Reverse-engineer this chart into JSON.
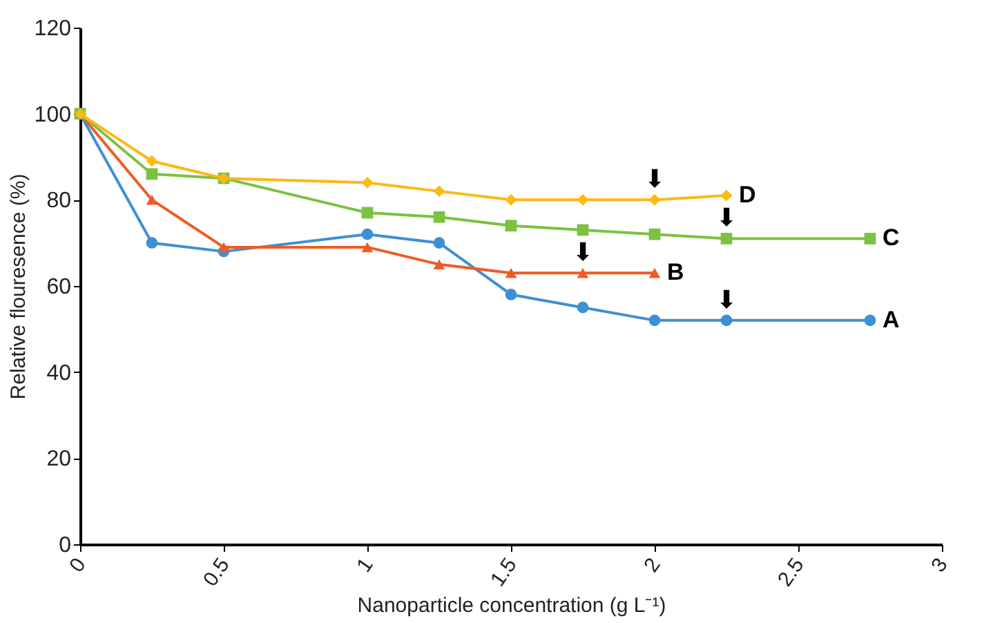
{
  "chart_data": {
    "type": "line",
    "xlabel": "Nanoparticle concentration (g L⁻¹)",
    "ylabel": "Relative flouresence (%)",
    "xlim": [
      0,
      3
    ],
    "xticks": [
      0,
      0.5,
      1,
      1.5,
      2,
      2.5,
      3
    ],
    "ylim": [
      0,
      120
    ],
    "yticks": [
      0,
      20,
      40,
      60,
      80,
      100,
      120
    ],
    "grid": false,
    "series": [
      {
        "name": "A",
        "color": "#3d8fd6",
        "marker": "circle",
        "x": [
          0,
          0.25,
          0.5,
          1,
          1.25,
          1.5,
          1.75,
          2,
          2.25,
          2.75
        ],
        "values": [
          100,
          70,
          68,
          72,
          70,
          58,
          55,
          52,
          52,
          52
        ]
      },
      {
        "name": "B",
        "color": "#ef5b25",
        "marker": "triangle",
        "x": [
          0,
          0.25,
          0.5,
          1,
          1.25,
          1.5,
          1.75,
          2
        ],
        "values": [
          100,
          80,
          69,
          69,
          65,
          63,
          63,
          63
        ]
      },
      {
        "name": "C",
        "color": "#7cc142",
        "marker": "square",
        "x": [
          0,
          0.25,
          0.5,
          1,
          1.25,
          1.5,
          1.75,
          2,
          2.25,
          2.75
        ],
        "values": [
          100,
          86,
          85,
          77,
          76,
          74,
          73,
          72,
          71,
          71
        ]
      },
      {
        "name": "D",
        "color": "#fdb813",
        "marker": "diamond",
        "x": [
          0,
          0.25,
          0.5,
          1,
          1.25,
          1.5,
          1.75,
          2,
          2.25
        ],
        "values": [
          100,
          89,
          85,
          84,
          82,
          80,
          80,
          80,
          81
        ]
      }
    ],
    "annotations": [
      {
        "text": "⬇",
        "x": 2.25,
        "y": 52
      },
      {
        "text": "⬇",
        "x": 1.75,
        "y": 63
      },
      {
        "text": "⬇",
        "x": 2.25,
        "y": 71
      },
      {
        "text": "⬇",
        "x": 2,
        "y": 80
      }
    ]
  }
}
